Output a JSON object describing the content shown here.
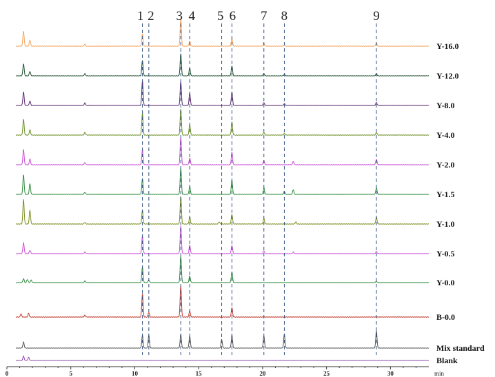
{
  "chart_data": {
    "type": "line",
    "title": "",
    "xlabel": "min",
    "ylabel": "",
    "xlim": [
      0,
      33
    ],
    "x_ticks": [
      "0",
      "5",
      "10",
      "15",
      "20",
      "25",
      "30"
    ],
    "x_tick_values": [
      0,
      5,
      10,
      15,
      20,
      25,
      30
    ],
    "grid": false,
    "peaks": [
      {
        "label": "1",
        "rt": 10.6
      },
      {
        "label": "2",
        "rt": 11.1
      },
      {
        "label": "3",
        "rt": 13.6
      },
      {
        "label": "4",
        "rt": 14.3
      },
      {
        "label": "5",
        "rt": 16.8
      },
      {
        "label": "6",
        "rt": 17.6
      },
      {
        "label": "7",
        "rt": 20.1
      },
      {
        "label": "8",
        "rt": 21.7
      },
      {
        "label": "9",
        "rt": 28.9
      }
    ],
    "series": [
      {
        "name": "Y-16.0",
        "color": "#F4A460",
        "peaks": [
          {
            "rt": 1.3,
            "h": 0.55
          },
          {
            "rt": 1.8,
            "h": 0.22
          },
          {
            "rt": 6.1,
            "h": 0.08
          },
          {
            "rt": 10.6,
            "h": 0.45
          },
          {
            "rt": 13.6,
            "h": 1.0
          },
          {
            "rt": 14.3,
            "h": 0.18
          },
          {
            "rt": 17.6,
            "h": 0.3
          },
          {
            "rt": 20.1,
            "h": 0.1
          },
          {
            "rt": 21.7,
            "h": 0.06
          },
          {
            "rt": 28.9,
            "h": 0.12
          }
        ]
      },
      {
        "name": "Y-12.0",
        "color": "#1F4E2E",
        "peaks": [
          {
            "rt": 1.3,
            "h": 0.55
          },
          {
            "rt": 1.8,
            "h": 0.2
          },
          {
            "rt": 6.1,
            "h": 0.1
          },
          {
            "rt": 10.6,
            "h": 0.7
          },
          {
            "rt": 13.6,
            "h": 1.0
          },
          {
            "rt": 14.3,
            "h": 0.35
          },
          {
            "rt": 17.6,
            "h": 0.45
          },
          {
            "rt": 20.1,
            "h": 0.1
          },
          {
            "rt": 21.7,
            "h": 0.06
          },
          {
            "rt": 28.9,
            "h": 0.1
          }
        ]
      },
      {
        "name": "Y-8.0",
        "color": "#5A2A6E",
        "peaks": [
          {
            "rt": 1.3,
            "h": 0.55
          },
          {
            "rt": 1.8,
            "h": 0.18
          },
          {
            "rt": 6.1,
            "h": 0.1
          },
          {
            "rt": 10.6,
            "h": 1.0
          },
          {
            "rt": 13.6,
            "h": 0.95
          },
          {
            "rt": 14.3,
            "h": 0.5
          },
          {
            "rt": 17.6,
            "h": 0.55
          },
          {
            "rt": 20.1,
            "h": 0.12
          },
          {
            "rt": 21.7,
            "h": 0.07
          },
          {
            "rt": 28.9,
            "h": 0.12
          }
        ]
      },
      {
        "name": "Y-4.0",
        "color": "#6B8E23",
        "peaks": [
          {
            "rt": 1.3,
            "h": 0.6
          },
          {
            "rt": 1.8,
            "h": 0.2
          },
          {
            "rt": 6.1,
            "h": 0.1
          },
          {
            "rt": 10.6,
            "h": 0.85
          },
          {
            "rt": 13.6,
            "h": 1.0
          },
          {
            "rt": 14.3,
            "h": 0.4
          },
          {
            "rt": 17.6,
            "h": 0.5
          },
          {
            "rt": 20.1,
            "h": 0.1
          },
          {
            "rt": 21.7,
            "h": 0.06
          },
          {
            "rt": 28.9,
            "h": 0.1
          }
        ]
      },
      {
        "name": "Y-2.0",
        "color": "#C94FD6",
        "peaks": [
          {
            "rt": 1.3,
            "h": 0.55
          },
          {
            "rt": 1.8,
            "h": 0.2
          },
          {
            "rt": 6.1,
            "h": 0.08
          },
          {
            "rt": 10.6,
            "h": 0.55
          },
          {
            "rt": 13.6,
            "h": 1.0
          },
          {
            "rt": 14.3,
            "h": 0.25
          },
          {
            "rt": 17.6,
            "h": 0.45
          },
          {
            "rt": 20.1,
            "h": 0.15
          },
          {
            "rt": 22.4,
            "h": 0.12
          },
          {
            "rt": 28.9,
            "h": 0.2
          }
        ]
      },
      {
        "name": "Y-1.5",
        "color": "#2E8B3A",
        "peaks": [
          {
            "rt": 1.3,
            "h": 0.75
          },
          {
            "rt": 1.8,
            "h": 0.4
          },
          {
            "rt": 6.1,
            "h": 0.08
          },
          {
            "rt": 10.6,
            "h": 0.6
          },
          {
            "rt": 13.6,
            "h": 1.0
          },
          {
            "rt": 14.3,
            "h": 0.3
          },
          {
            "rt": 17.6,
            "h": 0.55
          },
          {
            "rt": 20.1,
            "h": 0.25
          },
          {
            "rt": 21.7,
            "h": 0.12
          },
          {
            "rt": 22.4,
            "h": 0.18
          },
          {
            "rt": 28.9,
            "h": 0.25
          }
        ]
      },
      {
        "name": "Y-1.0",
        "color": "#7A8E1E",
        "peaks": [
          {
            "rt": 1.3,
            "h": 0.9
          },
          {
            "rt": 1.8,
            "h": 0.5
          },
          {
            "rt": 6.1,
            "h": 0.06
          },
          {
            "rt": 10.6,
            "h": 0.5
          },
          {
            "rt": 13.6,
            "h": 1.0
          },
          {
            "rt": 14.3,
            "h": 0.25
          },
          {
            "rt": 16.6,
            "h": 0.08
          },
          {
            "rt": 17.6,
            "h": 0.35
          },
          {
            "rt": 20.1,
            "h": 0.2
          },
          {
            "rt": 22.6,
            "h": 0.08
          },
          {
            "rt": 28.9,
            "h": 0.25
          }
        ]
      },
      {
        "name": "Y-0.5",
        "color": "#C94FD6",
        "peaks": [
          {
            "rt": 1.3,
            "h": 0.4
          },
          {
            "rt": 1.8,
            "h": 0.12
          },
          {
            "rt": 6.1,
            "h": 0.06
          },
          {
            "rt": 10.6,
            "h": 0.65
          },
          {
            "rt": 13.6,
            "h": 1.0
          },
          {
            "rt": 14.3,
            "h": 0.3
          },
          {
            "rt": 17.6,
            "h": 0.3
          },
          {
            "rt": 20.1,
            "h": 0.1
          },
          {
            "rt": 22.4,
            "h": 0.06
          },
          {
            "rt": 28.9,
            "h": 0.08
          }
        ]
      },
      {
        "name": "Y-0.0",
        "color": "#2E8B3A",
        "peaks": [
          {
            "rt": 1.3,
            "h": 0.15
          },
          {
            "rt": 1.6,
            "h": 0.12
          },
          {
            "rt": 1.9,
            "h": 0.1
          },
          {
            "rt": 6.1,
            "h": 0.06
          },
          {
            "rt": 10.6,
            "h": 0.6
          },
          {
            "rt": 11.1,
            "h": 0.1
          },
          {
            "rt": 13.6,
            "h": 1.0
          },
          {
            "rt": 14.3,
            "h": 0.25
          },
          {
            "rt": 17.6,
            "h": 0.4
          },
          {
            "rt": 28.9,
            "h": 0.05
          }
        ]
      },
      {
        "name": "B-0.0",
        "color": "#C0392B",
        "peaks": [
          {
            "rt": 1.1,
            "h": 0.1
          },
          {
            "rt": 1.7,
            "h": 0.12
          },
          {
            "rt": 6.1,
            "h": 0.06
          },
          {
            "rt": 10.6,
            "h": 0.75
          },
          {
            "rt": 11.1,
            "h": 0.15
          },
          {
            "rt": 13.6,
            "h": 1.0
          },
          {
            "rt": 14.3,
            "h": 0.2
          },
          {
            "rt": 17.6,
            "h": 0.3
          }
        ]
      },
      {
        "name": "Mix standard",
        "color": "#555555",
        "peaks": [
          {
            "rt": 1.3,
            "h": 0.35
          },
          {
            "rt": 10.6,
            "h": 0.75
          },
          {
            "rt": 11.1,
            "h": 0.75
          },
          {
            "rt": 13.6,
            "h": 0.8
          },
          {
            "rt": 14.3,
            "h": 0.7
          },
          {
            "rt": 16.8,
            "h": 0.5
          },
          {
            "rt": 17.6,
            "h": 0.75
          },
          {
            "rt": 20.1,
            "h": 0.7
          },
          {
            "rt": 21.7,
            "h": 0.8
          },
          {
            "rt": 28.9,
            "h": 1.0
          }
        ]
      },
      {
        "name": "Blank",
        "color": "#8E44AD",
        "peaks": [
          {
            "rt": 1.3,
            "h": 0.8
          },
          {
            "rt": 1.7,
            "h": 0.6
          }
        ]
      }
    ]
  }
}
